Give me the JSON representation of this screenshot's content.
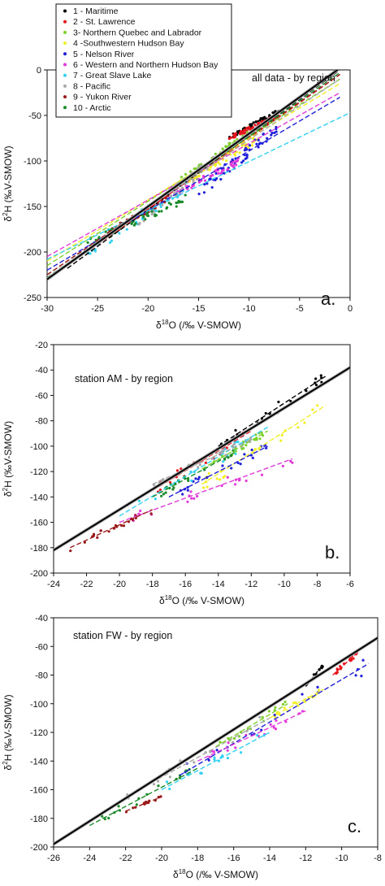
{
  "legend": [
    {
      "label": "1 - Maritime",
      "color": "#000000"
    },
    {
      "label": "2 - St. Lawrence",
      "color": "#e8141c"
    },
    {
      "label": "3- Northern Quebec and Labrador",
      "color": "#7dd12c"
    },
    {
      "label": "4 -Southwestern Hudson Bay",
      "color": "#f2ef25"
    },
    {
      "label": "5 - Nelson River",
      "color": "#2020d8"
    },
    {
      "label": "6 - Western and Northern Hudson Bay",
      "color": "#e03ad8"
    },
    {
      "label": "7 - Great Slave Lake",
      "color": "#33d0f0"
    },
    {
      "label": "8 - Pacific",
      "color": "#a8a8a8"
    },
    {
      "label": "9 - Yukon River",
      "color": "#9a1a1a"
    },
    {
      "label": "10 - Arctic",
      "color": "#1a8a2a"
    }
  ],
  "chart_data": [
    {
      "type": "scatter",
      "panel_letter": "a.",
      "title": "all data - by region",
      "xlabel": "δ18O (/‰ V-SMOW)",
      "ylabel": "δ2H (‰V-SMOW)",
      "xlim": [
        -30,
        0
      ],
      "ylim": [
        -250,
        0
      ],
      "xticks": [
        -30,
        -25,
        -20,
        -15,
        -10,
        -5,
        0
      ],
      "yticks": [
        0,
        -50,
        -100,
        -150,
        -200,
        -250
      ],
      "meteoric_line": {
        "slope": 8,
        "intercept": 10
      },
      "regression_lines": [
        {
          "region": 1,
          "x": [
            -28,
            -1
          ],
          "y": [
            -218,
            0
          ]
        },
        {
          "region": 2,
          "x": [
            -28,
            -1
          ],
          "y": [
            -215,
            -5
          ]
        },
        {
          "region": 3,
          "x": [
            -30,
            -1
          ],
          "y": [
            -215,
            -10
          ]
        },
        {
          "region": 4,
          "x": [
            -30,
            -1
          ],
          "y": [
            -210,
            -15
          ]
        },
        {
          "region": 5,
          "x": [
            -30,
            -1
          ],
          "y": [
            -220,
            -30
          ]
        },
        {
          "region": 6,
          "x": [
            -30,
            -1
          ],
          "y": [
            -205,
            -25
          ]
        },
        {
          "region": 7,
          "x": [
            -30,
            0
          ],
          "y": [
            -208,
            -47
          ]
        },
        {
          "region": 8,
          "x": [
            -30,
            -1
          ],
          "y": [
            -225,
            -10
          ]
        },
        {
          "region": 9,
          "x": [
            -30,
            -1
          ],
          "y": [
            -225,
            -5
          ]
        },
        {
          "region": 10,
          "x": [
            -30,
            -1
          ],
          "y": [
            -228,
            -3
          ]
        }
      ],
      "point_clusters": [
        {
          "region": 1,
          "x": [
            -12,
            -7
          ],
          "y": [
            -75,
            -45
          ]
        },
        {
          "region": 2,
          "x": [
            -12,
            -7
          ],
          "y": [
            -75,
            -50
          ]
        },
        {
          "region": 3,
          "x": [
            -17,
            -10
          ],
          "y": [
            -125,
            -70
          ]
        },
        {
          "region": 4,
          "x": [
            -16,
            -9
          ],
          "y": [
            -120,
            -75
          ]
        },
        {
          "region": 5,
          "x": [
            -15,
            -7
          ],
          "y": [
            -135,
            -60
          ]
        },
        {
          "region": 6,
          "x": [
            -18,
            -11
          ],
          "y": [
            -140,
            -100
          ]
        },
        {
          "region": 7,
          "x": [
            -26,
            -16
          ],
          "y": [
            -200,
            -125
          ]
        },
        {
          "region": 8,
          "x": [
            -21,
            -13
          ],
          "y": [
            -165,
            -95
          ]
        },
        {
          "region": 9,
          "x": [
            -24,
            -18
          ],
          "y": [
            -180,
            -140
          ]
        },
        {
          "region": 10,
          "x": [
            -26,
            -16
          ],
          "y": [
            -190,
            -140
          ]
        }
      ]
    },
    {
      "type": "scatter",
      "panel_letter": "b.",
      "title": "station AM - by region",
      "xlabel": "δ18O (/‰ V-SMOW)",
      "ylabel": "δ2H (‰V-SMOW)",
      "xlim": [
        -24,
        -6
      ],
      "ylim": [
        -200,
        -20
      ],
      "xticks": [
        -24,
        -22,
        -20,
        -18,
        -16,
        -14,
        -12,
        -10,
        -8,
        -6
      ],
      "yticks": [
        -20,
        -40,
        -60,
        -80,
        -100,
        -120,
        -140,
        -160,
        -180,
        -200
      ],
      "meteoric_line": {
        "slope": 8,
        "intercept": 10
      },
      "regression_lines": [
        {
          "region": 1,
          "x": [
            -14,
            -7.5
          ],
          "y": [
            -100,
            -45
          ]
        },
        {
          "region": 2,
          "x": [
            -18,
            -12
          ],
          "y": [
            -135,
            -88
          ]
        },
        {
          "region": 3,
          "x": [
            -15,
            -11
          ],
          "y": [
            -118,
            -88
          ]
        },
        {
          "region": 4,
          "x": [
            -15,
            -7.5
          ],
          "y": [
            -130,
            -68
          ]
        },
        {
          "region": 5,
          "x": [
            -17,
            -11
          ],
          "y": [
            -140,
            -100
          ]
        },
        {
          "region": 6,
          "x": [
            -20,
            -9.5
          ],
          "y": [
            -160,
            -110
          ]
        },
        {
          "region": 7,
          "x": [
            -20,
            -11
          ],
          "y": [
            -155,
            -85
          ]
        },
        {
          "region": 8,
          "x": [
            -18,
            -12
          ],
          "y": [
            -130,
            -95
          ]
        },
        {
          "region": 9,
          "x": [
            -23,
            -18
          ],
          "y": [
            -180,
            -150
          ]
        },
        {
          "region": 10,
          "x": [
            -18,
            -13
          ],
          "y": [
            -140,
            -105
          ]
        }
      ],
      "point_clusters": [
        {
          "region": 1,
          "x": [
            -14,
            -7.5
          ],
          "y": [
            -100,
            -45
          ]
        },
        {
          "region": 2,
          "x": [
            -18,
            -12
          ],
          "y": [
            -135,
            -88
          ]
        },
        {
          "region": 3,
          "x": [
            -15,
            -11
          ],
          "y": [
            -118,
            -88
          ]
        },
        {
          "region": 4,
          "x": [
            -15,
            -7.5
          ],
          "y": [
            -130,
            -68
          ]
        },
        {
          "region": 5,
          "x": [
            -17,
            -11
          ],
          "y": [
            -140,
            -100
          ]
        },
        {
          "region": 6,
          "x": [
            -20,
            -9.5
          ],
          "y": [
            -160,
            -110
          ]
        },
        {
          "region": 7,
          "x": [
            -20,
            -11
          ],
          "y": [
            -155,
            -85
          ]
        },
        {
          "region": 8,
          "x": [
            -18,
            -12
          ],
          "y": [
            -130,
            -95
          ]
        },
        {
          "region": 9,
          "x": [
            -23,
            -18
          ],
          "y": [
            -180,
            -150
          ]
        },
        {
          "region": 10,
          "x": [
            -18,
            -13
          ],
          "y": [
            -140,
            -105
          ]
        }
      ]
    },
    {
      "type": "scatter",
      "panel_letter": "c.",
      "title": "station FW - by region",
      "xlabel": "δ18O (/‰ V-SMOW)",
      "ylabel": "δ2H (‰V-SMOW)",
      "xlim": [
        -26,
        -8
      ],
      "ylim": [
        -200,
        -40
      ],
      "xticks": [
        -26,
        -24,
        -22,
        -20,
        -18,
        -16,
        -14,
        -12,
        -10,
        -8
      ],
      "yticks": [
        -40,
        -60,
        -80,
        -100,
        -120,
        -140,
        -160,
        -180,
        -200
      ],
      "meteoric_line": {
        "slope": 8,
        "intercept": 10
      },
      "regression_lines": [
        {
          "region": 1,
          "x": [
            -12,
            -11
          ],
          "y": [
            -88,
            -72
          ]
        },
        {
          "region": 2,
          "x": [
            -10.5,
            -9
          ],
          "y": [
            -80,
            -63
          ]
        },
        {
          "region": 3,
          "x": [
            -17,
            -13
          ],
          "y": [
            -130,
            -100
          ]
        },
        {
          "region": 4,
          "x": [
            -14,
            -11
          ],
          "y": [
            -110,
            -90
          ]
        },
        {
          "region": 5,
          "x": [
            -19,
            -8.5
          ],
          "y": [
            -150,
            -72
          ]
        },
        {
          "region": 6,
          "x": [
            -18,
            -12
          ],
          "y": [
            -140,
            -105
          ]
        },
        {
          "region": 7,
          "x": [
            -20,
            -14
          ],
          "y": [
            -160,
            -120
          ]
        },
        {
          "region": 8,
          "x": [
            -22,
            -14
          ],
          "y": [
            -165,
            -110
          ]
        },
        {
          "region": 9,
          "x": [
            -22,
            -20
          ],
          "y": [
            -175,
            -165
          ]
        },
        {
          "region": 10,
          "x": [
            -24,
            -18
          ],
          "y": [
            -185,
            -145
          ]
        }
      ],
      "point_clusters": [
        {
          "region": 1,
          "x": [
            -12,
            -11
          ],
          "y": [
            -88,
            -72
          ]
        },
        {
          "region": 2,
          "x": [
            -10.5,
            -9
          ],
          "y": [
            -80,
            -63
          ]
        },
        {
          "region": 3,
          "x": [
            -17,
            -13
          ],
          "y": [
            -130,
            -100
          ]
        },
        {
          "region": 4,
          "x": [
            -14,
            -11
          ],
          "y": [
            -110,
            -90
          ]
        },
        {
          "region": 5,
          "x": [
            -19,
            -8.5
          ],
          "y": [
            -150,
            -72
          ]
        },
        {
          "region": 6,
          "x": [
            -18,
            -12
          ],
          "y": [
            -140,
            -105
          ]
        },
        {
          "region": 7,
          "x": [
            -20,
            -14
          ],
          "y": [
            -160,
            -120
          ]
        },
        {
          "region": 8,
          "x": [
            -22,
            -14
          ],
          "y": [
            -165,
            -110
          ]
        },
        {
          "region": 9,
          "x": [
            -22,
            -20
          ],
          "y": [
            -175,
            -165
          ]
        },
        {
          "region": 10,
          "x": [
            -24,
            -18
          ],
          "y": [
            -185,
            -145
          ]
        }
      ]
    }
  ]
}
